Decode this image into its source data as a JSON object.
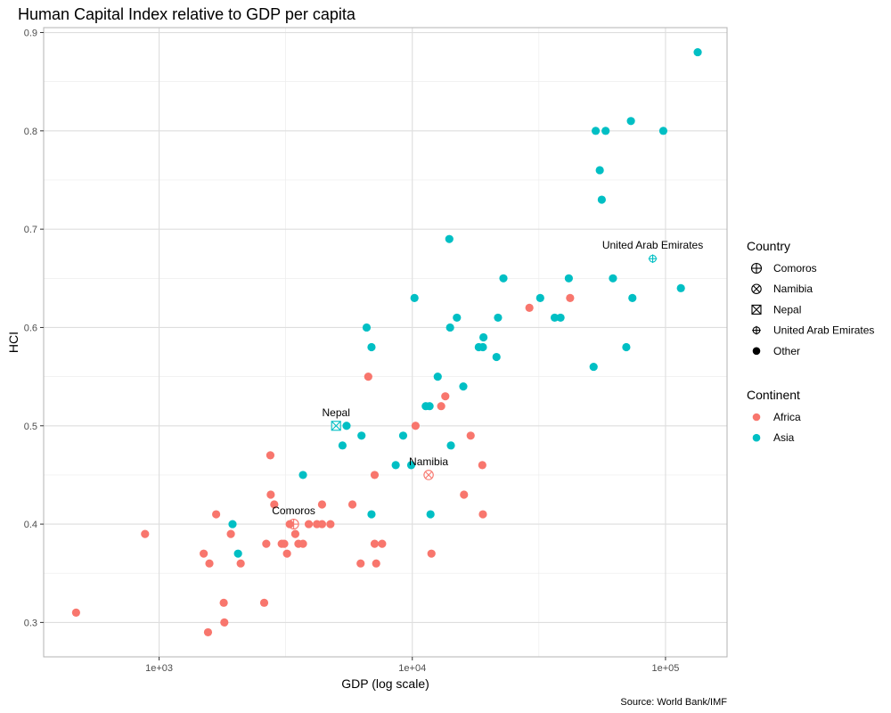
{
  "chart_data": {
    "type": "scatter",
    "title": "Human Capital Index relative to GDP per capita",
    "xlabel": "GDP (log scale)",
    "ylabel": "HCI",
    "caption": "Source: World Bank/IMF",
    "x_scale": "log10",
    "xlim": [
      350,
      175000
    ],
    "ylim": [
      0.265,
      0.905
    ],
    "x_ticks": [
      1000,
      10000,
      100000
    ],
    "x_tick_labels": [
      "1e+03",
      "1e+04",
      "1e+05"
    ],
    "y_ticks": [
      0.3,
      0.4,
      0.5,
      0.6,
      0.7,
      0.8,
      0.9
    ],
    "y_tick_labels": [
      "0.3",
      "0.4",
      "0.5",
      "0.6",
      "0.7",
      "0.8",
      "0.9"
    ],
    "grid": true,
    "legend_position": "right",
    "colors": {
      "Africa": "#F8766D",
      "Asia": "#00BFC4"
    },
    "legend": {
      "country_title": "Country",
      "country_items": [
        {
          "label": "Comoros",
          "shape": "circle-plus"
        },
        {
          "label": "Namibia",
          "shape": "circle-x"
        },
        {
          "label": "Nepal",
          "shape": "square-x"
        },
        {
          "label": "United Arab Emirates",
          "shape": "small-circle-plus"
        },
        {
          "label": "Other",
          "shape": "dot"
        }
      ],
      "continent_title": "Continent",
      "continent_items": [
        {
          "label": "Africa"
        },
        {
          "label": "Asia"
        }
      ]
    },
    "highlighted": [
      {
        "country": "United Arab Emirates",
        "continent": "Asia",
        "x": 89000,
        "y": 0.67,
        "shape": "small-circle-plus"
      },
      {
        "country": "Nepal",
        "continent": "Asia",
        "x": 5000,
        "y": 0.5,
        "shape": "square-x"
      },
      {
        "country": "Namibia",
        "continent": "Africa",
        "x": 11600,
        "y": 0.45,
        "shape": "circle-x"
      },
      {
        "country": "Comoros",
        "continent": "Africa",
        "x": 3400,
        "y": 0.4,
        "shape": "circle-plus"
      }
    ],
    "series": [
      {
        "name": "Africa",
        "points": [
          [
            470,
            0.31
          ],
          [
            880,
            0.39
          ],
          [
            1500,
            0.37
          ],
          [
            1560,
            0.29
          ],
          [
            1580,
            0.36
          ],
          [
            1680,
            0.41
          ],
          [
            1800,
            0.32
          ],
          [
            1810,
            0.3
          ],
          [
            1920,
            0.39
          ],
          [
            2100,
            0.36
          ],
          [
            2600,
            0.32
          ],
          [
            2650,
            0.38
          ],
          [
            2750,
            0.47
          ],
          [
            2760,
            0.43
          ],
          [
            2850,
            0.42
          ],
          [
            3050,
            0.38
          ],
          [
            3120,
            0.38
          ],
          [
            3200,
            0.37
          ],
          [
            3280,
            0.4
          ],
          [
            3450,
            0.39
          ],
          [
            3550,
            0.38
          ],
          [
            3700,
            0.38
          ],
          [
            3900,
            0.4
          ],
          [
            4200,
            0.4
          ],
          [
            4400,
            0.42
          ],
          [
            4400,
            0.4
          ],
          [
            4750,
            0.4
          ],
          [
            5800,
            0.42
          ],
          [
            6250,
            0.36
          ],
          [
            6700,
            0.55
          ],
          [
            7100,
            0.45
          ],
          [
            7100,
            0.38
          ],
          [
            7200,
            0.36
          ],
          [
            7600,
            0.38
          ],
          [
            10300,
            0.5
          ],
          [
            11900,
            0.37
          ],
          [
            13000,
            0.52
          ],
          [
            13500,
            0.53
          ],
          [
            16000,
            0.43
          ],
          [
            17000,
            0.49
          ],
          [
            18900,
            0.46
          ],
          [
            19000,
            0.41
          ],
          [
            29000,
            0.62
          ],
          [
            42000,
            0.63
          ]
        ]
      },
      {
        "name": "Asia",
        "points": [
          [
            1950,
            0.4
          ],
          [
            2050,
            0.37
          ],
          [
            3700,
            0.45
          ],
          [
            5300,
            0.48
          ],
          [
            5500,
            0.5
          ],
          [
            6300,
            0.49
          ],
          [
            6600,
            0.6
          ],
          [
            6900,
            0.58
          ],
          [
            6900,
            0.41
          ],
          [
            8600,
            0.46
          ],
          [
            9200,
            0.49
          ],
          [
            9900,
            0.46
          ],
          [
            10200,
            0.63
          ],
          [
            11300,
            0.52
          ],
          [
            11700,
            0.52
          ],
          [
            11800,
            0.41
          ],
          [
            12600,
            0.55
          ],
          [
            14000,
            0.69
          ],
          [
            14100,
            0.6
          ],
          [
            14200,
            0.48
          ],
          [
            15000,
            0.61
          ],
          [
            15900,
            0.54
          ],
          [
            18300,
            0.58
          ],
          [
            19000,
            0.58
          ],
          [
            19100,
            0.59
          ],
          [
            21500,
            0.57
          ],
          [
            21800,
            0.61
          ],
          [
            22900,
            0.65
          ],
          [
            32000,
            0.63
          ],
          [
            36500,
            0.61
          ],
          [
            38500,
            0.61
          ],
          [
            41500,
            0.65
          ],
          [
            52000,
            0.56
          ],
          [
            53000,
            0.8
          ],
          [
            55000,
            0.76
          ],
          [
            56000,
            0.73
          ],
          [
            58000,
            0.8
          ],
          [
            62000,
            0.65
          ],
          [
            70000,
            0.58
          ],
          [
            73000,
            0.81
          ],
          [
            74000,
            0.63
          ],
          [
            98000,
            0.8
          ],
          [
            115000,
            0.64
          ],
          [
            134000,
            0.88
          ]
        ]
      }
    ]
  }
}
